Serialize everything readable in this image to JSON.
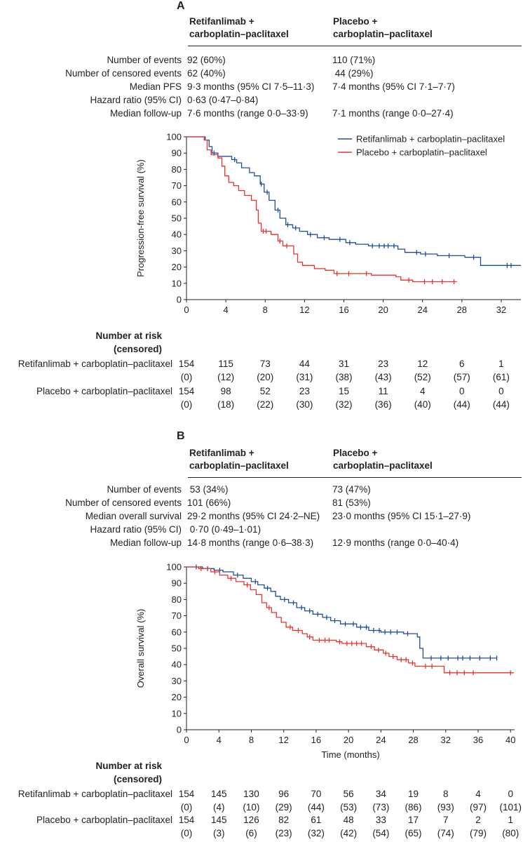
{
  "panels": [
    {
      "letter": "A",
      "arm1_header": [
        "Retifanlimab +",
        "carboplatin–paclitaxel"
      ],
      "arm2_header": [
        "Placebo +",
        "carboplatin–paclitaxel"
      ],
      "stats": [
        {
          "label": "Number of events",
          "arm1": "92 (60%)",
          "arm2": "110 (71%)"
        },
        {
          "label": "Number of censored events",
          "arm1": "62 (40%)",
          "arm2": " 44 (29%)"
        },
        {
          "label": "Median PFS",
          "arm1": "9·3 months (95% CI 7·5–11·3)",
          "arm2": "7·4 months (95% CI 7·1–7·7)"
        },
        {
          "label": "Hazard ratio (95% CI)",
          "arm1": "0·63 (0·47–0·84)",
          "arm2": ""
        },
        {
          "label": "Median follow-up",
          "arm1": "7·6 months (range 0·0–33·9)",
          "arm2": "7·1 months (range 0·0–27·4)"
        }
      ],
      "risk_title": [
        "Number at risk",
        "(censored)"
      ],
      "risk_rows": [
        {
          "label": "Retifanlimab + carboplatin–paclitaxel",
          "at_risk": [
            "154",
            "115",
            "73",
            "44",
            "31",
            "23",
            "12",
            "6",
            "1"
          ],
          "censored": [
            "(0)",
            "(12)",
            "(20)",
            "(31)",
            "(38)",
            "(43)",
            "(52)",
            "(57)",
            "(61)"
          ]
        },
        {
          "label": "Placebo + carboplatin–paclitaxel",
          "at_risk": [
            "154",
            "98",
            "52",
            "23",
            "15",
            "11",
            "4",
            "0",
            "0"
          ],
          "censored": [
            "(0)",
            "(18)",
            "(22)",
            "(30)",
            "(32)",
            "(36)",
            "(40)",
            "(44)",
            "(44)"
          ]
        }
      ]
    },
    {
      "letter": "B",
      "arm1_header": [
        "Retifanlimab +",
        "carboplatin–paclitaxel"
      ],
      "arm2_header": [
        "Placebo +",
        "carboplatin–paclitaxel"
      ],
      "stats": [
        {
          "label": "Number of events",
          "arm1": " 53 (34%)",
          "arm2": "73 (47%)"
        },
        {
          "label": "Number of censored events",
          "arm1": "101 (66%)",
          "arm2": "81 (53%)"
        },
        {
          "label": "Median overall survival",
          "arm1": "29·2 months (95% CI 24·2–NE)",
          "arm2": "23·0 months (95% CI 15·1–27·9)"
        },
        {
          "label": "Hazard ratio (95% CI)",
          "arm1": " 0·70 (0·49–1·01)",
          "arm2": ""
        },
        {
          "label": "Median follow-up",
          "arm1": "14·8 months (range 0·6–38·3)",
          "arm2": "12·9 months (range 0·0–40·4)"
        }
      ],
      "risk_title": [
        "Number at risk",
        "(censored)"
      ],
      "risk_rows": [
        {
          "label": "Retifanlimab + carboplatin–paclitaxel",
          "at_risk": [
            "154",
            "145",
            "130",
            "96",
            "70",
            "56",
            "34",
            "19",
            "8",
            "4",
            "0"
          ],
          "censored": [
            "(0)",
            "(4)",
            "(10)",
            "(29)",
            "(44)",
            "(53)",
            "(73)",
            "(86)",
            "(93)",
            "(97)",
            "(101)"
          ]
        },
        {
          "label": "Placebo + carboplatin–paclitaxel",
          "at_risk": [
            "154",
            "145",
            "126",
            "82",
            "61",
            "48",
            "33",
            "17",
            "7",
            "2",
            "1"
          ],
          "censored": [
            "(0)",
            "(3)",
            "(6)",
            "(23)",
            "(32)",
            "(42)",
            "(54)",
            "(65)",
            "(74)",
            "(79)",
            "(80)"
          ]
        }
      ]
    }
  ],
  "colors": {
    "arm1": "#1f4e99",
    "arm2": "#e8322d",
    "axis": "#222222"
  },
  "chart_data": [
    {
      "type": "line",
      "subtype": "kaplan-meier",
      "title": "A",
      "xlabel": "",
      "ylabel": "Progression-free survival (%)",
      "xlim": [
        0,
        34
      ],
      "ylim": [
        0,
        100
      ],
      "xticks": [
        0,
        4,
        8,
        12,
        16,
        20,
        24,
        28,
        32
      ],
      "yticks": [
        0,
        10,
        20,
        30,
        40,
        50,
        60,
        70,
        80,
        90,
        100
      ],
      "legend": [
        "Retifanlimab + carboplatin–paclitaxel",
        "Placebo + carboplatin–paclitaxel"
      ],
      "legend_position": "top-right",
      "series": [
        {
          "name": "Retifanlimab + carboplatin–paclitaxel",
          "color_key": "arm1",
          "steps": [
            [
              0,
              100
            ],
            [
              1.9,
              98
            ],
            [
              2.3,
              94
            ],
            [
              2.6,
              90
            ],
            [
              3.2,
              88
            ],
            [
              4.6,
              86
            ],
            [
              5.1,
              84
            ],
            [
              5.6,
              81
            ],
            [
              6.4,
              78
            ],
            [
              6.9,
              76
            ],
            [
              7.5,
              71
            ],
            [
              7.9,
              66
            ],
            [
              8.4,
              61
            ],
            [
              9.0,
              55
            ],
            [
              9.5,
              50
            ],
            [
              10.1,
              46
            ],
            [
              10.8,
              44
            ],
            [
              11.5,
              42
            ],
            [
              12.3,
              40
            ],
            [
              13.3,
              38
            ],
            [
              14.5,
              37
            ],
            [
              16.2,
              35
            ],
            [
              17.2,
              34
            ],
            [
              18.5,
              33
            ],
            [
              21.5,
              31
            ],
            [
              22.2,
              29
            ],
            [
              23.8,
              28
            ],
            [
              25.5,
              27
            ],
            [
              28.3,
              26
            ],
            [
              29.9,
              21
            ],
            [
              34,
              21
            ]
          ],
          "censor_times": [
            2.8,
            4.9,
            7.6,
            8.2,
            9.3,
            10.3,
            11.1,
            12.6,
            14.0,
            15.6,
            16.6,
            18.9,
            19.6,
            20.1,
            20.5,
            21.1,
            23.4,
            24.3,
            26.7,
            29.2,
            32.6,
            33.0
          ]
        },
        {
          "name": "Placebo + carboplatin–paclitaxel",
          "color_key": "arm2",
          "steps": [
            [
              0,
              100
            ],
            [
              1.8,
              98
            ],
            [
              2.1,
              92
            ],
            [
              2.5,
              89
            ],
            [
              3.2,
              87
            ],
            [
              3.6,
              82
            ],
            [
              3.9,
              76
            ],
            [
              4.3,
              72
            ],
            [
              4.8,
              70
            ],
            [
              5.3,
              67
            ],
            [
              5.9,
              64
            ],
            [
              6.6,
              61
            ],
            [
              7.1,
              55
            ],
            [
              7.3,
              47
            ],
            [
              7.6,
              42
            ],
            [
              8.6,
              40
            ],
            [
              9.3,
              36
            ],
            [
              9.8,
              33
            ],
            [
              10.9,
              28
            ],
            [
              11.3,
              23
            ],
            [
              11.8,
              21
            ],
            [
              13.0,
              19
            ],
            [
              14.1,
              18
            ],
            [
              15.0,
              16
            ],
            [
              18.8,
              15
            ],
            [
              21.3,
              14
            ],
            [
              21.8,
              12
            ],
            [
              23.0,
              11
            ],
            [
              27.5,
              11
            ]
          ],
          "censor_times": [
            7.8,
            8.1,
            9.5,
            10.2,
            15.3,
            16.5,
            18.3,
            22.6,
            24.2,
            25.0,
            26.0,
            27.2
          ]
        }
      ]
    },
    {
      "type": "line",
      "subtype": "kaplan-meier",
      "title": "B",
      "xlabel": "Time (months)",
      "ylabel": "Overall survival (%)",
      "xlim": [
        0,
        40.5
      ],
      "ylim": [
        0,
        100
      ],
      "xticks": [
        0,
        4,
        8,
        12,
        16,
        20,
        24,
        28,
        32,
        36,
        40
      ],
      "yticks": [
        0,
        10,
        20,
        30,
        40,
        50,
        60,
        70,
        80,
        90,
        100
      ],
      "series": [
        {
          "name": "Retifanlimab + carboplatin–paclitaxel",
          "color_key": "arm1",
          "steps": [
            [
              0,
              100
            ],
            [
              2.0,
              99
            ],
            [
              3.4,
              98
            ],
            [
              4.5,
              97
            ],
            [
              5.8,
              95
            ],
            [
              7.0,
              93
            ],
            [
              8.0,
              91
            ],
            [
              8.8,
              89
            ],
            [
              9.6,
              87
            ],
            [
              10.4,
              85
            ],
            [
              11.0,
              82
            ],
            [
              11.6,
              80
            ],
            [
              12.6,
              78
            ],
            [
              13.6,
              75
            ],
            [
              14.6,
              73
            ],
            [
              15.6,
              71
            ],
            [
              16.8,
              69
            ],
            [
              17.8,
              67
            ],
            [
              19.0,
              65
            ],
            [
              21.0,
              63
            ],
            [
              22.5,
              61
            ],
            [
              24.0,
              60
            ],
            [
              26.8,
              59
            ],
            [
              28.5,
              57
            ],
            [
              28.8,
              50
            ],
            [
              29.2,
              44
            ],
            [
              38.3,
              44
            ]
          ],
          "censor_times": [
            1.2,
            2.6,
            4.1,
            6.3,
            8.5,
            10.0,
            12.1,
            13.2,
            14.2,
            15.2,
            16.2,
            17.3,
            18.3,
            19.6,
            20.6,
            21.5,
            22.2,
            23.1,
            23.8,
            24.5,
            25.2,
            26.0,
            27.3,
            30.2,
            31.4,
            32.3,
            33.5,
            34.1,
            35.0,
            36.2,
            37.5,
            38.3
          ]
        },
        {
          "name": "Placebo + carboplatin–paclitaxel",
          "color_key": "arm2",
          "steps": [
            [
              0,
              100
            ],
            [
              1.5,
              99
            ],
            [
              3.0,
              97
            ],
            [
              4.1,
              95
            ],
            [
              5.1,
              93
            ],
            [
              6.1,
              91
            ],
            [
              7.1,
              89
            ],
            [
              7.9,
              86
            ],
            [
              8.6,
              83
            ],
            [
              9.3,
              78
            ],
            [
              9.9,
              75
            ],
            [
              10.5,
              72
            ],
            [
              11.1,
              69
            ],
            [
              11.7,
              66
            ],
            [
              12.3,
              63
            ],
            [
              13.1,
              61
            ],
            [
              14.3,
              59
            ],
            [
              14.9,
              57
            ],
            [
              15.6,
              55
            ],
            [
              18.5,
              54
            ],
            [
              19.2,
              53
            ],
            [
              22.2,
              51
            ],
            [
              23.2,
              49
            ],
            [
              24.3,
              47
            ],
            [
              25.0,
              45
            ],
            [
              26.0,
              43
            ],
            [
              27.4,
              41
            ],
            [
              28.2,
              39
            ],
            [
              31.8,
              35
            ],
            [
              40.4,
              35
            ]
          ],
          "censor_times": [
            1.8,
            3.5,
            5.5,
            7.5,
            10.2,
            12.8,
            13.8,
            15.2,
            16.4,
            17.1,
            17.6,
            18.9,
            19.8,
            20.4,
            21.0,
            21.6,
            22.8,
            23.7,
            24.6,
            25.5,
            26.5,
            27.1,
            27.9,
            29.5,
            30.3,
            32.5,
            33.4,
            34.3,
            35.4,
            40.0
          ]
        }
      ]
    }
  ]
}
